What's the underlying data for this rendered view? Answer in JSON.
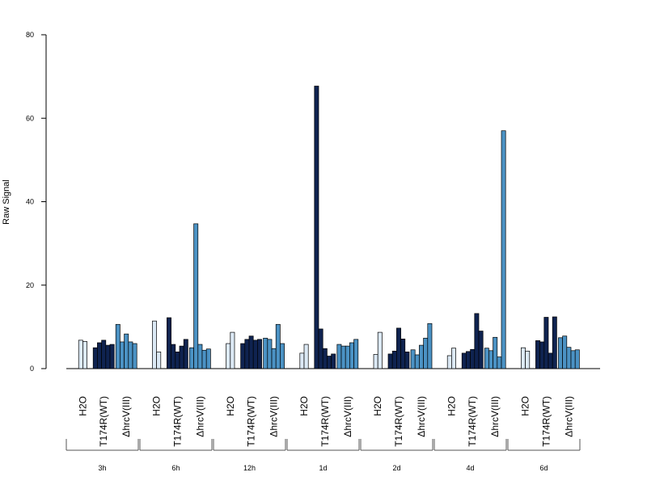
{
  "chart_data": {
    "type": "bar",
    "ylabel": "Raw Signal",
    "ylim": [
      0,
      80
    ],
    "yticks": [
      0,
      20,
      40,
      60,
      80
    ],
    "grid": false,
    "condition_colors": {
      "H2O": "#dce9f5",
      "T174R(WT)": "#0f2350",
      "ΔhrcV(III)": "#4b92c4"
    },
    "groups": [
      {
        "time": "3h",
        "conditions": [
          {
            "label": "H2O",
            "values": [
              6.8,
              6.5
            ]
          },
          {
            "label": "T174R(WT)",
            "values": [
              5.0,
              6.2,
              6.8,
              5.6,
              5.8
            ]
          },
          {
            "label": "ΔhrcV(III)",
            "values": [
              10.6,
              6.4,
              8.3,
              6.4,
              6.0
            ]
          }
        ]
      },
      {
        "time": "6h",
        "conditions": [
          {
            "label": "H2O",
            "values": [
              11.4,
              4.0
            ]
          },
          {
            "label": "T174R(WT)",
            "values": [
              12.2,
              5.8,
              4.0,
              5.4,
              7.0
            ]
          },
          {
            "label": "ΔhrcV(III)",
            "values": [
              5.0,
              34.7,
              5.8,
              4.4,
              4.7
            ]
          }
        ]
      },
      {
        "time": "12h",
        "conditions": [
          {
            "label": "H2O",
            "values": [
              6.0,
              8.7
            ]
          },
          {
            "label": "T174R(WT)",
            "values": [
              6.0,
              7.0,
              7.8,
              6.8,
              7.0
            ]
          },
          {
            "label": "ΔhrcV(III)",
            "values": [
              7.3,
              7.0,
              4.8,
              10.6,
              6.0
            ]
          }
        ]
      },
      {
        "time": "1d",
        "conditions": [
          {
            "label": "H2O",
            "values": [
              3.7,
              5.8
            ]
          },
          {
            "label": "T174R(WT)",
            "values": [
              67.7,
              9.5,
              4.8,
              3.0,
              3.5
            ]
          },
          {
            "label": "ΔhrcV(III)",
            "values": [
              5.8,
              5.4,
              5.4,
              6.2,
              7.0
            ]
          }
        ]
      },
      {
        "time": "2d",
        "conditions": [
          {
            "label": "H2O",
            "values": [
              3.4,
              8.7
            ]
          },
          {
            "label": "T174R(WT)",
            "values": [
              3.5,
              4.2,
              9.7,
              7.1,
              4.0
            ]
          },
          {
            "label": "ΔhrcV(III)",
            "values": [
              4.5,
              3.3,
              5.6,
              7.3,
              10.8
            ]
          }
        ]
      },
      {
        "time": "4d",
        "conditions": [
          {
            "label": "H2O",
            "values": [
              3.1,
              4.9
            ]
          },
          {
            "label": "T174R(WT)",
            "values": [
              3.7,
              4.1,
              4.6,
              13.2,
              9.0
            ]
          },
          {
            "label": "ΔhrcV(III)",
            "values": [
              4.9,
              4.3,
              7.5,
              2.8,
              57.0
            ]
          }
        ]
      },
      {
        "time": "6d",
        "conditions": [
          {
            "label": "H2O",
            "values": [
              5.0,
              4.2
            ]
          },
          {
            "label": "T174R(WT)",
            "values": [
              6.7,
              6.4,
              12.3,
              3.7,
              12.4
            ]
          },
          {
            "label": "ΔhrcV(III)",
            "values": [
              7.4,
              7.8,
              5.1,
              4.3,
              4.5
            ]
          }
        ]
      }
    ]
  }
}
